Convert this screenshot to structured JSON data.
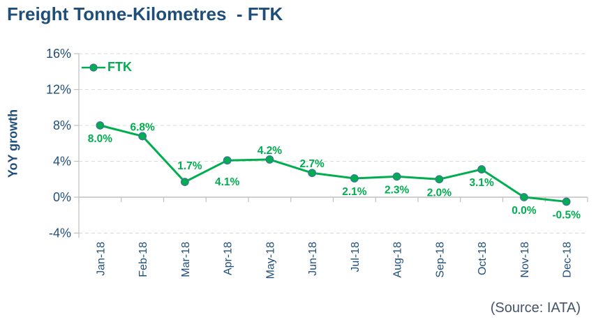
{
  "page": {
    "title": "Freight Tonne-Kilometres  - FTK",
    "source_note": "(Source: IATA)"
  },
  "legend": {
    "label": "FTK"
  },
  "axes": {
    "y_title": "YoY growth"
  },
  "colors": {
    "line_green": "#00AE4F",
    "navy": "#1F4E79",
    "marker_edge": "#41719C",
    "gridline": "#D9D9D9",
    "axis_line": "#BFBFBF",
    "source_text": "#44546A"
  },
  "chart_data": {
    "type": "line",
    "title": "Freight Tonne-Kilometres - FTK",
    "categories": [
      "Jan-18",
      "Feb-18",
      "Mar-18",
      "Apr-18",
      "May-18",
      "Jun-18",
      "Jul-18",
      "Aug-18",
      "Sep-18",
      "Oct-18",
      "Nov-18",
      "Dec-18"
    ],
    "series": [
      {
        "name": "FTK",
        "values": [
          8.0,
          6.8,
          1.7,
          4.1,
          4.2,
          2.7,
          2.1,
          2.3,
          2.0,
          3.1,
          0.0,
          -0.5
        ]
      }
    ],
    "data_labels": [
      "8.0%",
      "6.8%",
      "1.7%",
      "4.1%",
      "4.2%",
      "2.7%",
      "2.1%",
      "2.3%",
      "2.0%",
      "3.1%",
      "0.0%",
      "-0.5%"
    ],
    "label_placement": [
      "below",
      "above",
      "above-right",
      "below-far",
      "above",
      "above",
      "below",
      "below",
      "below",
      "below",
      "below",
      "below"
    ],
    "xlabel": "",
    "ylabel": "YoY growth",
    "y_ticks": [
      16,
      12,
      8,
      4,
      0,
      -4
    ],
    "y_tick_labels": [
      "16%",
      "12%",
      "8%",
      "4%",
      "0%",
      "-4%"
    ],
    "ylim": [
      -4,
      16
    ],
    "grid": "horizontal-dashed",
    "legend_position": "top-left-inside",
    "source": "(Source: IATA)"
  }
}
